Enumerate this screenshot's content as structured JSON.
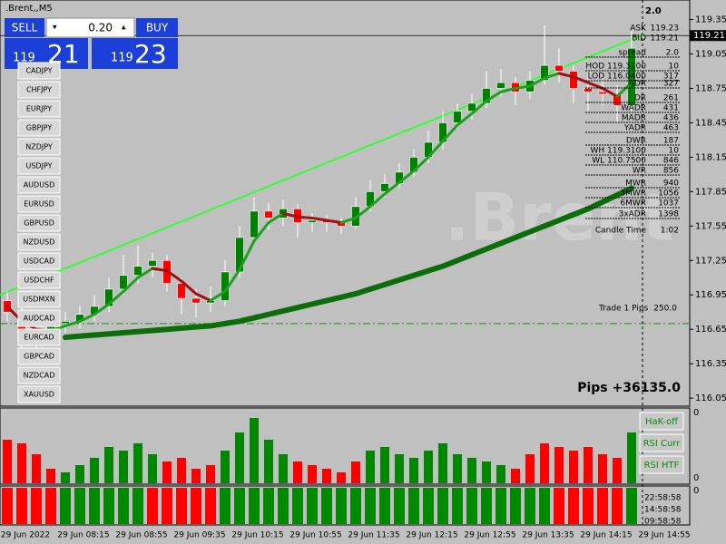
{
  "chart_data": {
    "type": "candlestick",
    "title": ".Brent,,M5",
    "watermark": ".Brent",
    "ylim": [
      115.98,
      119.52
    ],
    "yticks": [
      119.35,
      119.05,
      118.75,
      118.45,
      118.15,
      117.85,
      117.55,
      117.25,
      116.95,
      116.65,
      116.35,
      116.05
    ],
    "bid_price": 119.21,
    "bid_label": "119.21",
    "trade_line": 116.7,
    "time_labels": [
      "29 Jun 2022",
      "29 Jun 08:15",
      "29 Jun 08:55",
      "29 Jun 09:35",
      "29 Jun 10:15",
      "29 Jun 10:55",
      "29 Jun 11:35",
      "29 Jun 12:15",
      "29 Jun 12:55",
      "29 Jun 13:35",
      "29 Jun 14:15",
      "29 Jun 14:55"
    ],
    "up_color": "#008000",
    "down_color": "#ff0000",
    "candles": [
      [
        116.9,
        116.98,
        116.72,
        116.8
      ],
      [
        116.8,
        116.85,
        116.42,
        116.55
      ],
      [
        116.55,
        116.7,
        116.48,
        116.62
      ],
      [
        116.62,
        116.78,
        116.58,
        116.7
      ],
      [
        116.7,
        116.8,
        116.62,
        116.72
      ],
      [
        116.72,
        116.86,
        116.66,
        116.78
      ],
      [
        116.78,
        116.95,
        116.72,
        116.85
      ],
      [
        116.85,
        117.1,
        116.8,
        117.0
      ],
      [
        117.0,
        117.3,
        116.95,
        117.12
      ],
      [
        117.12,
        117.38,
        117.05,
        117.2
      ],
      [
        117.2,
        117.32,
        117.1,
        117.25
      ],
      [
        117.25,
        117.3,
        116.98,
        117.05
      ],
      [
        117.05,
        117.1,
        116.78,
        116.92
      ],
      [
        116.92,
        117.0,
        116.75,
        116.88
      ],
      [
        116.88,
        117.02,
        116.8,
        116.9
      ],
      [
        116.9,
        117.25,
        116.85,
        117.15
      ],
      [
        117.15,
        117.55,
        117.1,
        117.45
      ],
      [
        117.45,
        117.8,
        117.4,
        117.68
      ],
      [
        117.68,
        117.75,
        117.52,
        117.62
      ],
      [
        117.62,
        117.78,
        117.55,
        117.7
      ],
      [
        117.7,
        117.74,
        117.45,
        117.58
      ],
      [
        117.58,
        117.66,
        117.5,
        117.6
      ],
      [
        117.6,
        117.65,
        117.5,
        117.58
      ],
      [
        117.58,
        117.62,
        117.48,
        117.55
      ],
      [
        117.55,
        117.8,
        117.52,
        117.72
      ],
      [
        117.72,
        117.95,
        117.68,
        117.85
      ],
      [
        117.85,
        118.0,
        117.8,
        117.92
      ],
      [
        117.92,
        118.1,
        117.88,
        118.02
      ],
      [
        118.02,
        118.22,
        117.98,
        118.15
      ],
      [
        118.15,
        118.38,
        118.1,
        118.28
      ],
      [
        118.28,
        118.55,
        118.22,
        118.45
      ],
      [
        118.45,
        118.62,
        118.4,
        118.55
      ],
      [
        118.55,
        118.7,
        118.48,
        118.62
      ],
      [
        118.62,
        118.9,
        118.58,
        118.75
      ],
      [
        118.75,
        118.92,
        118.68,
        118.8
      ],
      [
        118.8,
        118.85,
        118.6,
        118.72
      ],
      [
        118.72,
        118.9,
        118.66,
        118.82
      ],
      [
        118.82,
        119.3,
        118.78,
        118.95
      ],
      [
        118.95,
        119.1,
        118.8,
        118.9
      ],
      [
        118.9,
        118.95,
        118.62,
        118.75
      ],
      [
        118.75,
        118.88,
        118.55,
        118.72
      ],
      [
        118.72,
        118.85,
        118.6,
        118.7
      ],
      [
        118.7,
        118.78,
        118.45,
        118.6
      ],
      [
        118.6,
        119.25,
        118.55,
        119.1
      ]
    ],
    "fast_ma": [
      116.85,
      116.72,
      116.65,
      116.64,
      116.68,
      116.72,
      116.78,
      116.87,
      116.98,
      117.1,
      117.18,
      117.16,
      117.07,
      116.96,
      116.9,
      116.98,
      117.17,
      117.42,
      117.58,
      117.66,
      117.63,
      117.62,
      117.6,
      117.58,
      117.62,
      117.72,
      117.83,
      117.93,
      118.03,
      118.15,
      118.29,
      118.43,
      118.53,
      118.64,
      118.72,
      118.75,
      118.77,
      118.84,
      118.88,
      118.85,
      118.8,
      118.75,
      118.68,
      118.8
    ],
    "slow_ma": [
      null,
      null,
      null,
      null,
      116.58,
      116.59,
      116.6,
      116.61,
      116.62,
      116.63,
      116.64,
      116.65,
      116.66,
      116.67,
      116.68,
      116.7,
      116.72,
      116.75,
      116.78,
      116.81,
      116.84,
      116.87,
      116.9,
      116.93,
      116.96,
      117.0,
      117.04,
      117.08,
      117.12,
      117.16,
      117.2,
      117.25,
      117.3,
      117.35,
      117.4,
      117.45,
      117.5,
      117.55,
      117.6,
      117.65,
      117.7,
      117.76,
      117.82,
      117.88
    ],
    "trendline": [
      116.95,
      119.22
    ],
    "hist": {
      "ylim": [
        0,
        100
      ],
      "values": [
        60,
        55,
        40,
        20,
        15,
        25,
        35,
        50,
        45,
        55,
        40,
        30,
        35,
        20,
        25,
        45,
        70,
        90,
        60,
        40,
        30,
        25,
        20,
        15,
        30,
        45,
        50,
        40,
        35,
        45,
        55,
        40,
        35,
        30,
        25,
        20,
        40,
        55,
        50,
        45,
        50,
        40,
        35,
        70
      ],
      "colors": [
        "#f00",
        "#f00",
        "#f00",
        "#f00",
        "#080",
        "#080",
        "#080",
        "#080",
        "#080",
        "#080",
        "#080",
        "#f00",
        "#f00",
        "#f00",
        "#f00",
        "#080",
        "#080",
        "#080",
        "#080",
        "#080",
        "#f00",
        "#f00",
        "#f00",
        "#f00",
        "#f00",
        "#080",
        "#080",
        "#080",
        "#080",
        "#080",
        "#080",
        "#080",
        "#080",
        "#080",
        "#080",
        "#f00",
        "#f00",
        "#f00",
        "#f00",
        "#f00",
        "#f00",
        "#f00",
        "#f00",
        "#080"
      ],
      "axis_labels": [
        "0",
        "0"
      ]
    },
    "signal_colors": [
      "#f00",
      "#f00",
      "#f00",
      "#f00",
      "#080",
      "#080",
      "#080",
      "#080",
      "#080",
      "#080",
      "#f00",
      "#f00",
      "#f00",
      "#f00",
      "#f00",
      "#080",
      "#080",
      "#080",
      "#080",
      "#080",
      "#080",
      "#080",
      "#080",
      "#080",
      "#080",
      "#080",
      "#080",
      "#080",
      "#080",
      "#080",
      "#080",
      "#080",
      "#080",
      "#080",
      "#080",
      "#080",
      "#080",
      "#080",
      "#f00",
      "#f00",
      "#f00",
      "#f00",
      "#f00",
      "#080"
    ],
    "signal_axis_label": "0"
  },
  "ui": {
    "sell": "SELL",
    "buy": "BUY",
    "lot": "0.20",
    "sell_price_big": "119",
    "sell_price_small": "21",
    "buy_price_big": "119",
    "buy_price_small": "23",
    "symbols": [
      "CADJPY",
      "CHFJPY",
      "EURJPY",
      "GBPJPY",
      "NZDJPY",
      "USDJPY",
      "AUDUSD",
      "EURUSD",
      "GBPUSD",
      "NZDUSD",
      "USDCAD",
      "USDCHF",
      "USDMXN",
      "AUDCAD",
      "EURCAD",
      "GBPCAD",
      "NZDCAD",
      "XAUUSD"
    ],
    "spread_top": "2.0",
    "info": [
      [
        "ASK",
        "119.23"
      ],
      [
        "BID",
        "119.21"
      ],
      [
        "spread",
        "2.0"
      ],
      [
        "HOD 119.3100",
        "10"
      ],
      [
        "LOD 116.0400",
        "317"
      ],
      [
        "ADR",
        "327"
      ],
      [
        "DR",
        "261"
      ],
      [
        "WADR",
        "431"
      ],
      [
        "MADR",
        "436"
      ],
      [
        "YADR",
        "463"
      ],
      [
        "DWR",
        "187"
      ],
      [
        "WH 119.3100",
        "10"
      ],
      [
        "WL 110.7500",
        "846"
      ],
      [
        "WR",
        "856"
      ],
      [
        "MWR",
        "940"
      ],
      [
        "3MWR",
        "1056"
      ],
      [
        "6MWR",
        "1037"
      ],
      [
        "3xADR",
        "1398"
      ],
      [
        "Candle Time",
        "1:02"
      ]
    ],
    "trade_label": "Trade 1 Pips",
    "trade_value": "250.0",
    "pips": "Pips +36135.0",
    "buttons": [
      "HaK-off",
      "RSI Curr",
      "RSI HTF"
    ],
    "times": [
      "22:58:58",
      "14:58:58",
      "09:58:58"
    ]
  }
}
